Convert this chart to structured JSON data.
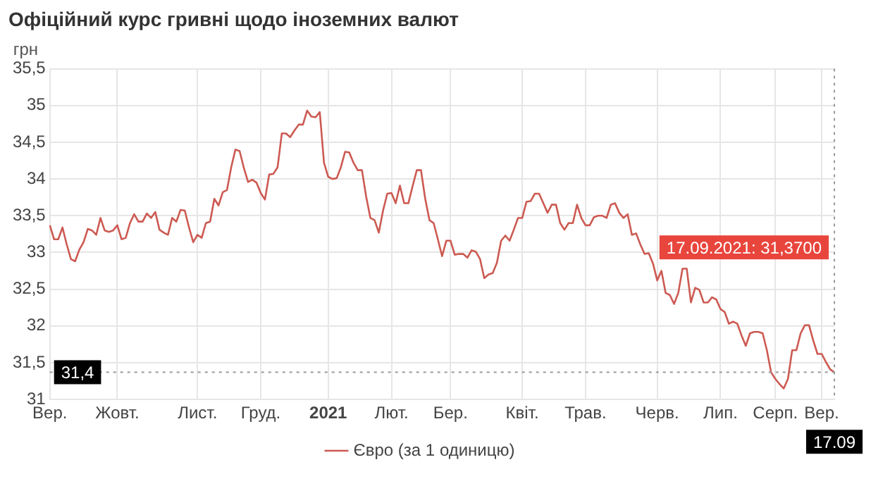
{
  "chart_data": {
    "type": "line",
    "title": "Офіційний курс гривні щодо іноземних валют",
    "ylabel": "грн",
    "categories": [
      "Вер.",
      null,
      null,
      null,
      null,
      null,
      null,
      null,
      null,
      null,
      null,
      null,
      null,
      null,
      null,
      null,
      "Жовт.",
      null,
      null,
      null,
      null,
      null,
      null,
      null,
      null,
      null,
      null,
      null,
      null,
      null,
      null,
      null,
      null,
      null,
      null,
      "Лист.",
      null,
      null,
      null,
      null,
      null,
      null,
      null,
      null,
      null,
      null,
      null,
      null,
      null,
      null,
      "Груд.",
      null,
      null,
      null,
      null,
      null,
      null,
      null,
      null,
      null,
      null,
      null,
      null,
      null,
      null,
      null,
      "2021",
      null,
      null,
      null,
      null,
      null,
      null,
      null,
      null,
      null,
      null,
      null,
      null,
      null,
      null,
      "Лют.",
      null,
      null,
      null,
      null,
      null,
      null,
      null,
      null,
      null,
      null,
      null,
      null,
      null,
      "Бер.",
      null,
      null,
      null,
      null,
      null,
      null,
      null,
      null,
      null,
      null,
      null,
      null,
      null,
      null,
      null,
      null,
      "Квіт.",
      null,
      null,
      null,
      null,
      null,
      null,
      null,
      null,
      null,
      null,
      null,
      null,
      null,
      null,
      "Трав.",
      null,
      null,
      null,
      null,
      null,
      null,
      null,
      null,
      null,
      null,
      null,
      null,
      null,
      null,
      null,
      null,
      "Черв.",
      null,
      null,
      null,
      null,
      null,
      null,
      null,
      null,
      null,
      null,
      null,
      null,
      null,
      null,
      "Лип.",
      null,
      null,
      null,
      null,
      null,
      null,
      null,
      null,
      null,
      null,
      null,
      null,
      "Серп.",
      null,
      null,
      null,
      null,
      null,
      null,
      null,
      null,
      null,
      null,
      "Вер.",
      null,
      null,
      null
    ],
    "series": [
      {
        "name": "Євро (за 1 одиницю)",
        "color": "#cc5a52",
        "values": [
          33.37,
          33.18,
          33.18,
          33.34,
          33.11,
          32.91,
          32.88,
          33.04,
          33.14,
          33.32,
          33.3,
          33.24,
          33.47,
          33.3,
          33.28,
          33.3,
          33.37,
          33.18,
          33.2,
          33.4,
          33.52,
          33.42,
          33.42,
          33.53,
          33.47,
          33.55,
          33.31,
          33.27,
          33.24,
          33.47,
          33.42,
          33.58,
          33.57,
          33.34,
          33.14,
          33.24,
          33.2,
          33.4,
          33.42,
          33.73,
          33.64,
          33.82,
          33.85,
          34.16,
          34.4,
          34.38,
          34.15,
          33.96,
          33.99,
          33.95,
          33.81,
          33.72,
          34.06,
          34.07,
          34.16,
          34.62,
          34.62,
          34.57,
          34.66,
          34.74,
          34.74,
          34.93,
          34.85,
          34.84,
          34.91,
          34.22,
          34.03,
          34.0,
          34.01,
          34.16,
          34.37,
          34.36,
          34.22,
          34.12,
          34.12,
          33.76,
          33.47,
          33.44,
          33.27,
          33.57,
          33.8,
          33.81,
          33.67,
          33.91,
          33.67,
          33.67,
          33.9,
          34.12,
          34.12,
          33.73,
          33.44,
          33.4,
          33.18,
          32.95,
          33.16,
          33.16,
          32.97,
          32.98,
          32.98,
          32.93,
          33.03,
          33.01,
          32.91,
          32.65,
          32.7,
          32.72,
          32.86,
          33.16,
          33.23,
          33.16,
          33.31,
          33.47,
          33.47,
          33.69,
          33.7,
          33.8,
          33.8,
          33.67,
          33.54,
          33.65,
          33.65,
          33.4,
          33.31,
          33.4,
          33.4,
          33.65,
          33.47,
          33.37,
          33.37,
          33.48,
          33.5,
          33.5,
          33.47,
          33.65,
          33.67,
          33.54,
          33.47,
          33.52,
          33.24,
          33.26,
          33.11,
          32.98,
          32.99,
          32.85,
          32.62,
          32.75,
          32.45,
          32.42,
          32.3,
          32.45,
          32.78,
          32.78,
          32.32,
          32.52,
          32.49,
          32.32,
          32.32,
          32.39,
          32.36,
          32.23,
          32.19,
          32.03,
          32.06,
          32.03,
          31.87,
          31.73,
          31.9,
          31.92,
          31.92,
          31.9,
          31.67,
          31.37,
          31.28,
          31.21,
          31.15,
          31.28,
          31.67,
          31.67,
          31.9,
          32.01,
          32.01,
          31.8,
          31.62,
          31.62,
          31.51,
          31.41,
          31.37
        ]
      }
    ],
    "ylim": [
      31,
      35.5
    ],
    "yticks": [
      31,
      {
        "value": 31.5,
        "label": "31,5"
      },
      32,
      {
        "value": 32.5,
        "label": "32,5"
      },
      33,
      {
        "value": 33.5,
        "label": "33,5"
      },
      34,
      {
        "value": 34.5,
        "label": "34,5"
      },
      35,
      {
        "value": 35.5,
        "label": "35,5"
      }
    ],
    "ref_lines": [
      {
        "axis": "y",
        "value": 31.37,
        "label": "31,4",
        "color": "#999999",
        "line_style": "dotted"
      },
      {
        "axis": "x",
        "label": "17.09",
        "color": "#999999",
        "line_style": "dotted"
      }
    ],
    "annotations": [
      "17.09.2021: 31,3700"
    ],
    "grid": true,
    "legend": "bottom",
    "marker": "none",
    "line_style": "solid"
  }
}
